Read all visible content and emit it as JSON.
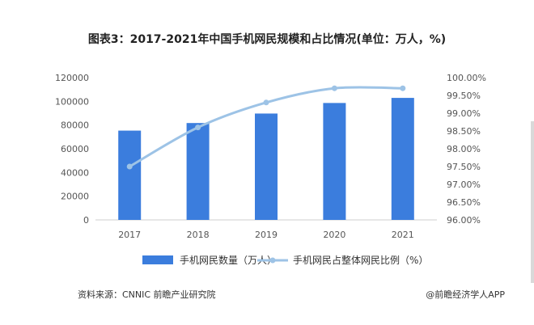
{
  "title": "图表3：2017-2021年中国手机网民规模和占比情况(单位：万人，%)",
  "source": "资料来源：CNNIC 前瞻产业研究院",
  "brand": "@前瞻经济学人APP",
  "colors": {
    "bar": "#3b7ddd",
    "line": "#9dc3e6",
    "axis_text": "#555555",
    "baseline": "#cfcfcf"
  },
  "chart_data": {
    "type": "bar",
    "categories": [
      "2017",
      "2018",
      "2019",
      "2020",
      "2021"
    ],
    "y_left": {
      "range": [
        0,
        120000
      ],
      "ticks": [
        "0",
        "20000",
        "40000",
        "60000",
        "80000",
        "100000",
        "120000"
      ]
    },
    "y_right": {
      "range": [
        96.0,
        100.0
      ],
      "ticks": [
        "96.00%",
        "96.50%",
        "97.00%",
        "97.50%",
        "98.00%",
        "98.50%",
        "99.00%",
        "99.50%",
        "100.00%"
      ]
    },
    "series": [
      {
        "name": "手机网民数量（万人）",
        "type": "bar",
        "axis": "left",
        "values": [
          75300,
          81700,
          89700,
          98600,
          102900
        ]
      },
      {
        "name": "手机网民占整体网民比例（%）",
        "type": "line",
        "axis": "right",
        "values": [
          97.5,
          98.6,
          99.3,
          99.7,
          99.7
        ]
      }
    ],
    "legend_position": "bottom",
    "grid": false
  }
}
